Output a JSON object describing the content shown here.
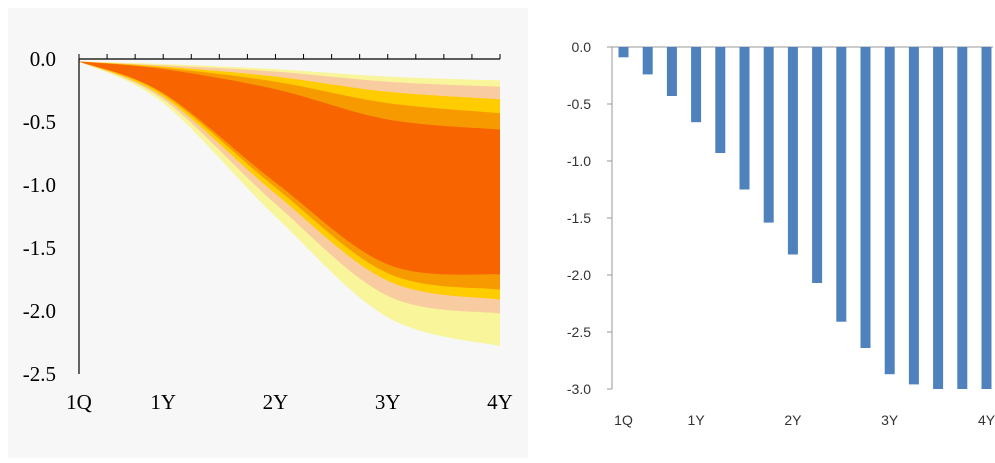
{
  "chart_data": [
    {
      "type": "area",
      "title": "",
      "xlabel": "",
      "ylabel": "",
      "ylim": [
        -2.5,
        0.0
      ],
      "yticks": [
        "0.0",
        "-0.5",
        "-1.0",
        "-1.5",
        "-2.0",
        "-2.5"
      ],
      "x_ticks": [
        "1Q",
        "1Y",
        "2Y",
        "3Y",
        "4Y"
      ],
      "x": [
        1,
        4,
        8,
        12,
        16
      ],
      "bands": [
        {
          "name": "",
          "color": "#f8f59b",
          "upper": [
            -0.02,
            -0.04,
            -0.08,
            -0.14,
            -0.17
          ],
          "lower": [
            -0.02,
            -0.35,
            -1.25,
            -2.05,
            -2.28
          ]
        },
        {
          "name": "",
          "color": "#f8cba0",
          "upper": [
            -0.02,
            -0.05,
            -0.1,
            -0.18,
            -0.22
          ],
          "lower": [
            -0.02,
            -0.32,
            -1.15,
            -1.88,
            -2.02
          ]
        },
        {
          "name": "",
          "color": "#ffcc00",
          "upper": [
            -0.02,
            -0.06,
            -0.14,
            -0.26,
            -0.32
          ],
          "lower": [
            -0.02,
            -0.3,
            -1.07,
            -1.76,
            -1.91
          ]
        },
        {
          "name": "",
          "color": "#f79a00",
          "upper": [
            -0.02,
            -0.07,
            -0.18,
            -0.35,
            -0.43
          ],
          "lower": [
            -0.02,
            -0.28,
            -1.02,
            -1.7,
            -1.83
          ]
        },
        {
          "name": "",
          "color": "#f76400",
          "upper": [
            -0.02,
            -0.08,
            -0.24,
            -0.48,
            -0.56
          ],
          "lower": [
            -0.02,
            -0.27,
            -0.98,
            -1.63,
            -1.71
          ]
        }
      ]
    },
    {
      "type": "bar",
      "title": "",
      "xlabel": "",
      "ylabel": "",
      "ylim": [
        -3.0,
        0.0
      ],
      "yticks": [
        "0.0",
        "-0.5",
        "-1.0",
        "-1.5",
        "-2.0",
        "-2.5",
        "-3.0"
      ],
      "x_ticks": [
        "1Q",
        "1Y",
        "2Y",
        "3Y",
        "4Y"
      ],
      "x_tick_positions": [
        1,
        4,
        8,
        12,
        16
      ],
      "color": "#4f81bd",
      "categories": [
        1,
        2,
        3,
        4,
        5,
        6,
        7,
        8,
        9,
        10,
        11,
        12,
        13,
        14,
        15,
        16
      ],
      "values": [
        -0.09,
        -0.24,
        -0.43,
        -0.66,
        -0.93,
        -1.25,
        -1.54,
        -1.82,
        -2.07,
        -2.41,
        -2.64,
        -2.87,
        -2.96,
        -3.0,
        -3.0,
        -3.0
      ]
    }
  ]
}
